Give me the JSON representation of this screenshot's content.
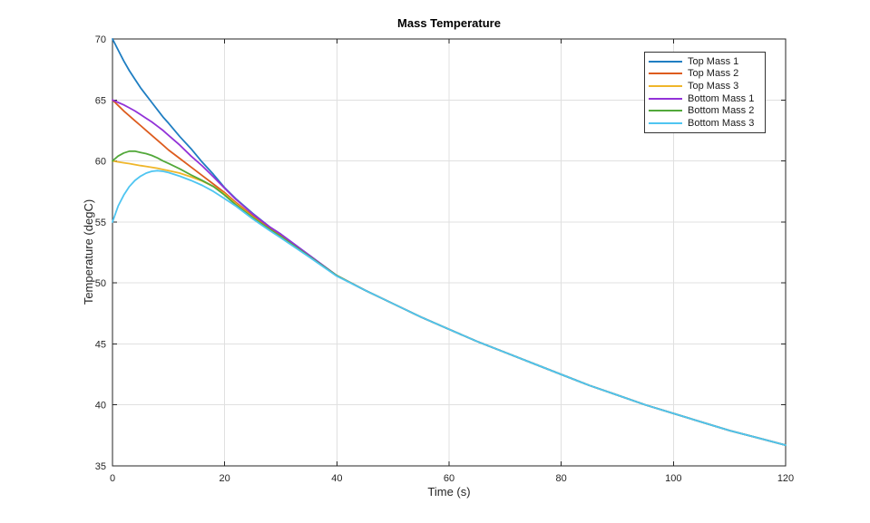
{
  "figure": {
    "title": "Mass Temperature",
    "xlabel": "Time (s)",
    "ylabel": "Temperature (degC)"
  },
  "styles": {
    "background": "#ffffff",
    "axis_color": "#262626",
    "grid_color": "#e0e0e0",
    "tick_label_color": "#262626",
    "legend_border_color": "#333333"
  },
  "chart_data": {
    "type": "line",
    "title": "Mass Temperature",
    "xlabel": "Time (s)",
    "ylabel": "Temperature (degC)",
    "xlim": [
      0,
      120
    ],
    "ylim": [
      35,
      70
    ],
    "xticks": [
      0,
      20,
      40,
      60,
      80,
      100,
      120
    ],
    "yticks": [
      35,
      40,
      45,
      50,
      55,
      60,
      65,
      70
    ],
    "grid": true,
    "legend_position": "top-right",
    "x": [
      0,
      1,
      2,
      3,
      4,
      5,
      6,
      7,
      8,
      9,
      10,
      12,
      14,
      16,
      18,
      20,
      22,
      25,
      28,
      30,
      35,
      40,
      45,
      50,
      55,
      60,
      65,
      70,
      75,
      80,
      85,
      90,
      95,
      100,
      105,
      110,
      115,
      120
    ],
    "series": [
      {
        "name": "Top Mass 1",
        "color": "#1F7EC2",
        "values": [
          70,
          69.1,
          68.2,
          67.4,
          66.7,
          66,
          65.4,
          64.8,
          64.2,
          63.6,
          63.1,
          62,
          61,
          59.9,
          58.9,
          57.8,
          56.9,
          55.7,
          54.6,
          54,
          52.3,
          50.6,
          49.4,
          48.3,
          47.2,
          46.2,
          45.2,
          44.3,
          43.4,
          42.5,
          41.6,
          40.8,
          40,
          39.3,
          38.6,
          37.9,
          37.3,
          36.7
        ]
      },
      {
        "name": "Top Mass 2",
        "color": "#DD5C1E",
        "values": [
          65,
          64.55,
          64.1,
          63.7,
          63.3,
          62.9,
          62.5,
          62.1,
          61.7,
          61.3,
          60.9,
          60.2,
          59.5,
          58.8,
          58.1,
          57.4,
          56.6,
          55.5,
          54.5,
          53.9,
          52.25,
          50.6,
          49.4,
          48.3,
          47.2,
          46.2,
          45.2,
          44.3,
          43.4,
          42.5,
          41.6,
          40.8,
          40,
          39.3,
          38.6,
          37.9,
          37.3,
          36.7
        ]
      },
      {
        "name": "Top Mass 3",
        "color": "#EFB62A",
        "values": [
          60,
          59.92,
          59.85,
          59.78,
          59.7,
          59.62,
          59.55,
          59.48,
          59.4,
          59.3,
          59.2,
          59,
          58.7,
          58.35,
          57.9,
          57.3,
          56.5,
          55.4,
          54.4,
          53.8,
          52.2,
          50.6,
          49.4,
          48.3,
          47.2,
          46.2,
          45.2,
          44.3,
          43.4,
          42.5,
          41.6,
          40.8,
          40,
          39.3,
          38.6,
          37.9,
          37.3,
          36.7
        ]
      },
      {
        "name": "Bottom Mass 1",
        "color": "#9232D8",
        "values": [
          65,
          64.8,
          64.6,
          64.35,
          64.1,
          63.8,
          63.5,
          63.2,
          62.85,
          62.5,
          62.1,
          61.3,
          60.4,
          59.6,
          58.7,
          57.75,
          56.85,
          55.65,
          54.6,
          54,
          52.3,
          50.6,
          49.4,
          48.3,
          47.2,
          46.2,
          45.2,
          44.3,
          43.4,
          42.5,
          41.6,
          40.8,
          40,
          39.3,
          38.6,
          37.9,
          37.3,
          36.7
        ]
      },
      {
        "name": "Bottom Mass 2",
        "color": "#52A83A",
        "values": [
          60,
          60.4,
          60.65,
          60.8,
          60.8,
          60.7,
          60.6,
          60.45,
          60.25,
          60,
          59.8,
          59.35,
          58.85,
          58.4,
          57.9,
          57.2,
          56.4,
          55.35,
          54.4,
          53.8,
          52.2,
          50.6,
          49.4,
          48.3,
          47.2,
          46.2,
          45.2,
          44.3,
          43.4,
          42.5,
          41.6,
          40.8,
          40,
          39.3,
          38.6,
          37.9,
          37.3,
          36.7
        ]
      },
      {
        "name": "Bottom Mass 3",
        "color": "#4FC5F1",
        "values": [
          55,
          56.3,
          57.2,
          57.9,
          58.4,
          58.75,
          59,
          59.15,
          59.2,
          59.15,
          59.05,
          58.75,
          58.4,
          58,
          57.5,
          56.9,
          56.3,
          55.25,
          54.3,
          53.7,
          52.15,
          50.55,
          49.4,
          48.3,
          47.2,
          46.2,
          45.2,
          44.3,
          43.4,
          42.5,
          41.6,
          40.8,
          40,
          39.3,
          38.6,
          37.9,
          37.3,
          36.7
        ]
      }
    ]
  }
}
